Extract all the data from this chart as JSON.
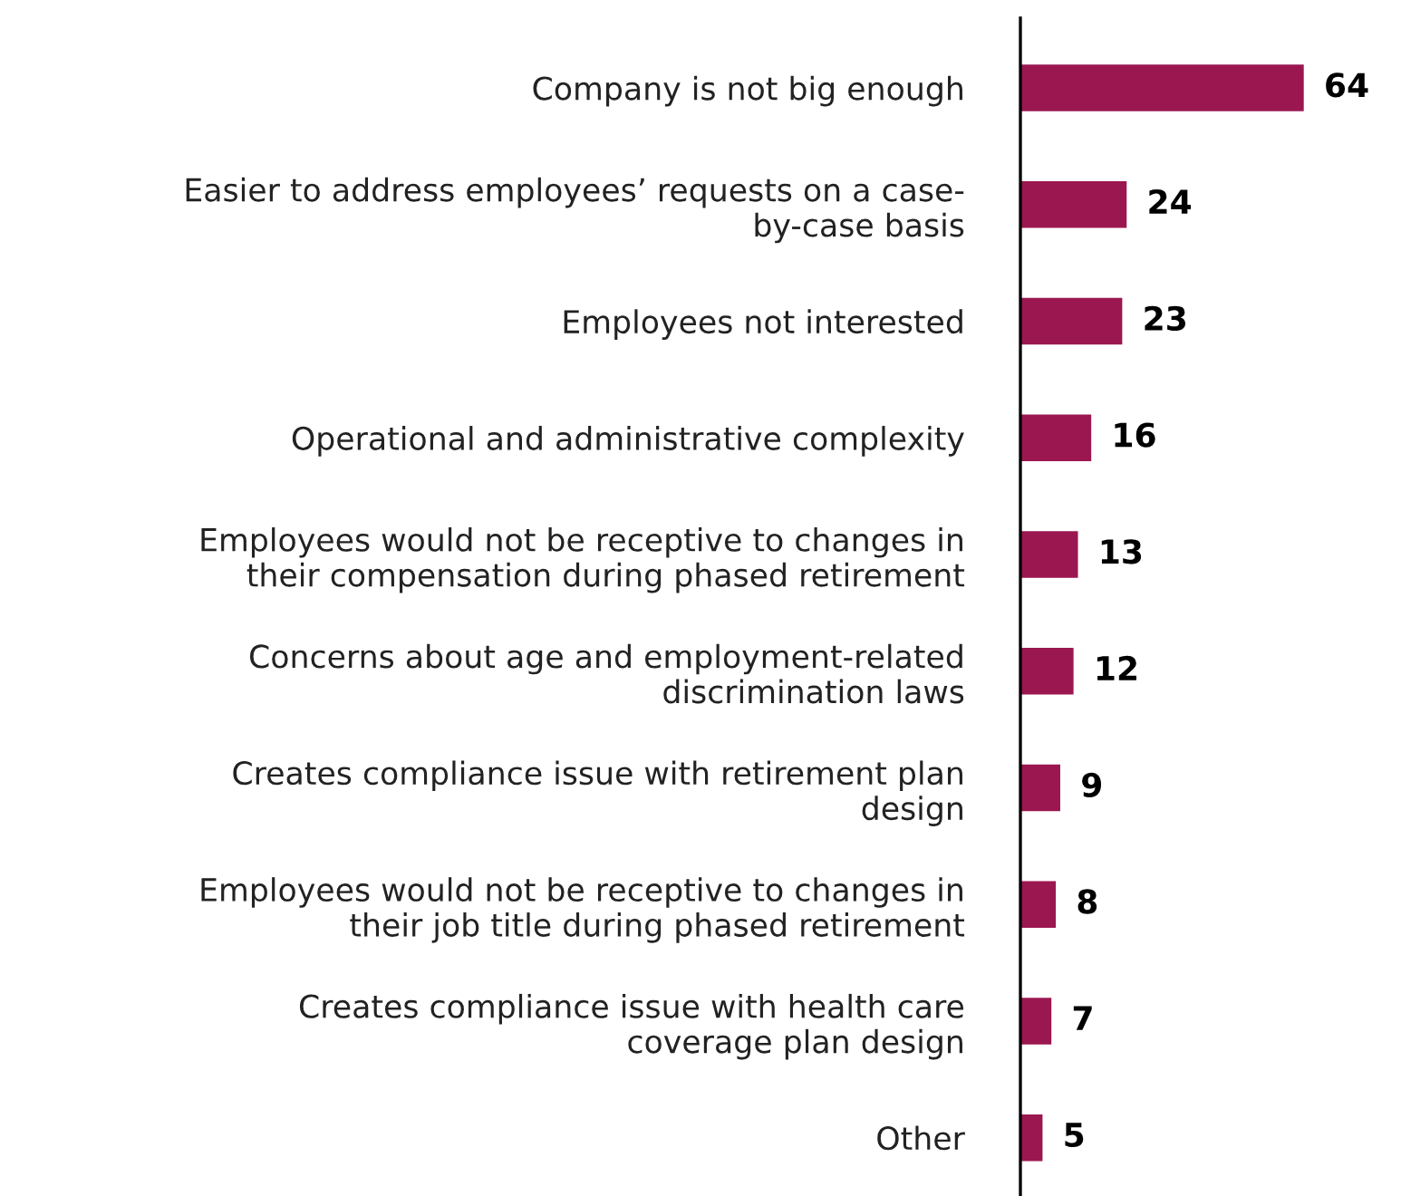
{
  "chart_data": {
    "type": "bar",
    "orientation": "horizontal",
    "categories": [
      "Company is not big enough",
      "Easier to address employees’ requests on a case-\nby-case basis",
      "Employees not interested",
      "Operational and administrative complexity",
      "Employees would not be receptive to changes in\ntheir compensation during phased retirement",
      "Concerns about age and employment-related\ndiscrimination laws",
      "Creates compliance issue with retirement plan\ndesign",
      "Employees would not be receptive to changes in\ntheir job title during phased retirement",
      "Creates compliance issue with health care\ncoverage plan design",
      "Other"
    ],
    "values": [
      64,
      24,
      23,
      16,
      13,
      12,
      9,
      8,
      7,
      5
    ],
    "color": "#9b1750",
    "data_labels": true,
    "grid": false,
    "legend": false
  }
}
